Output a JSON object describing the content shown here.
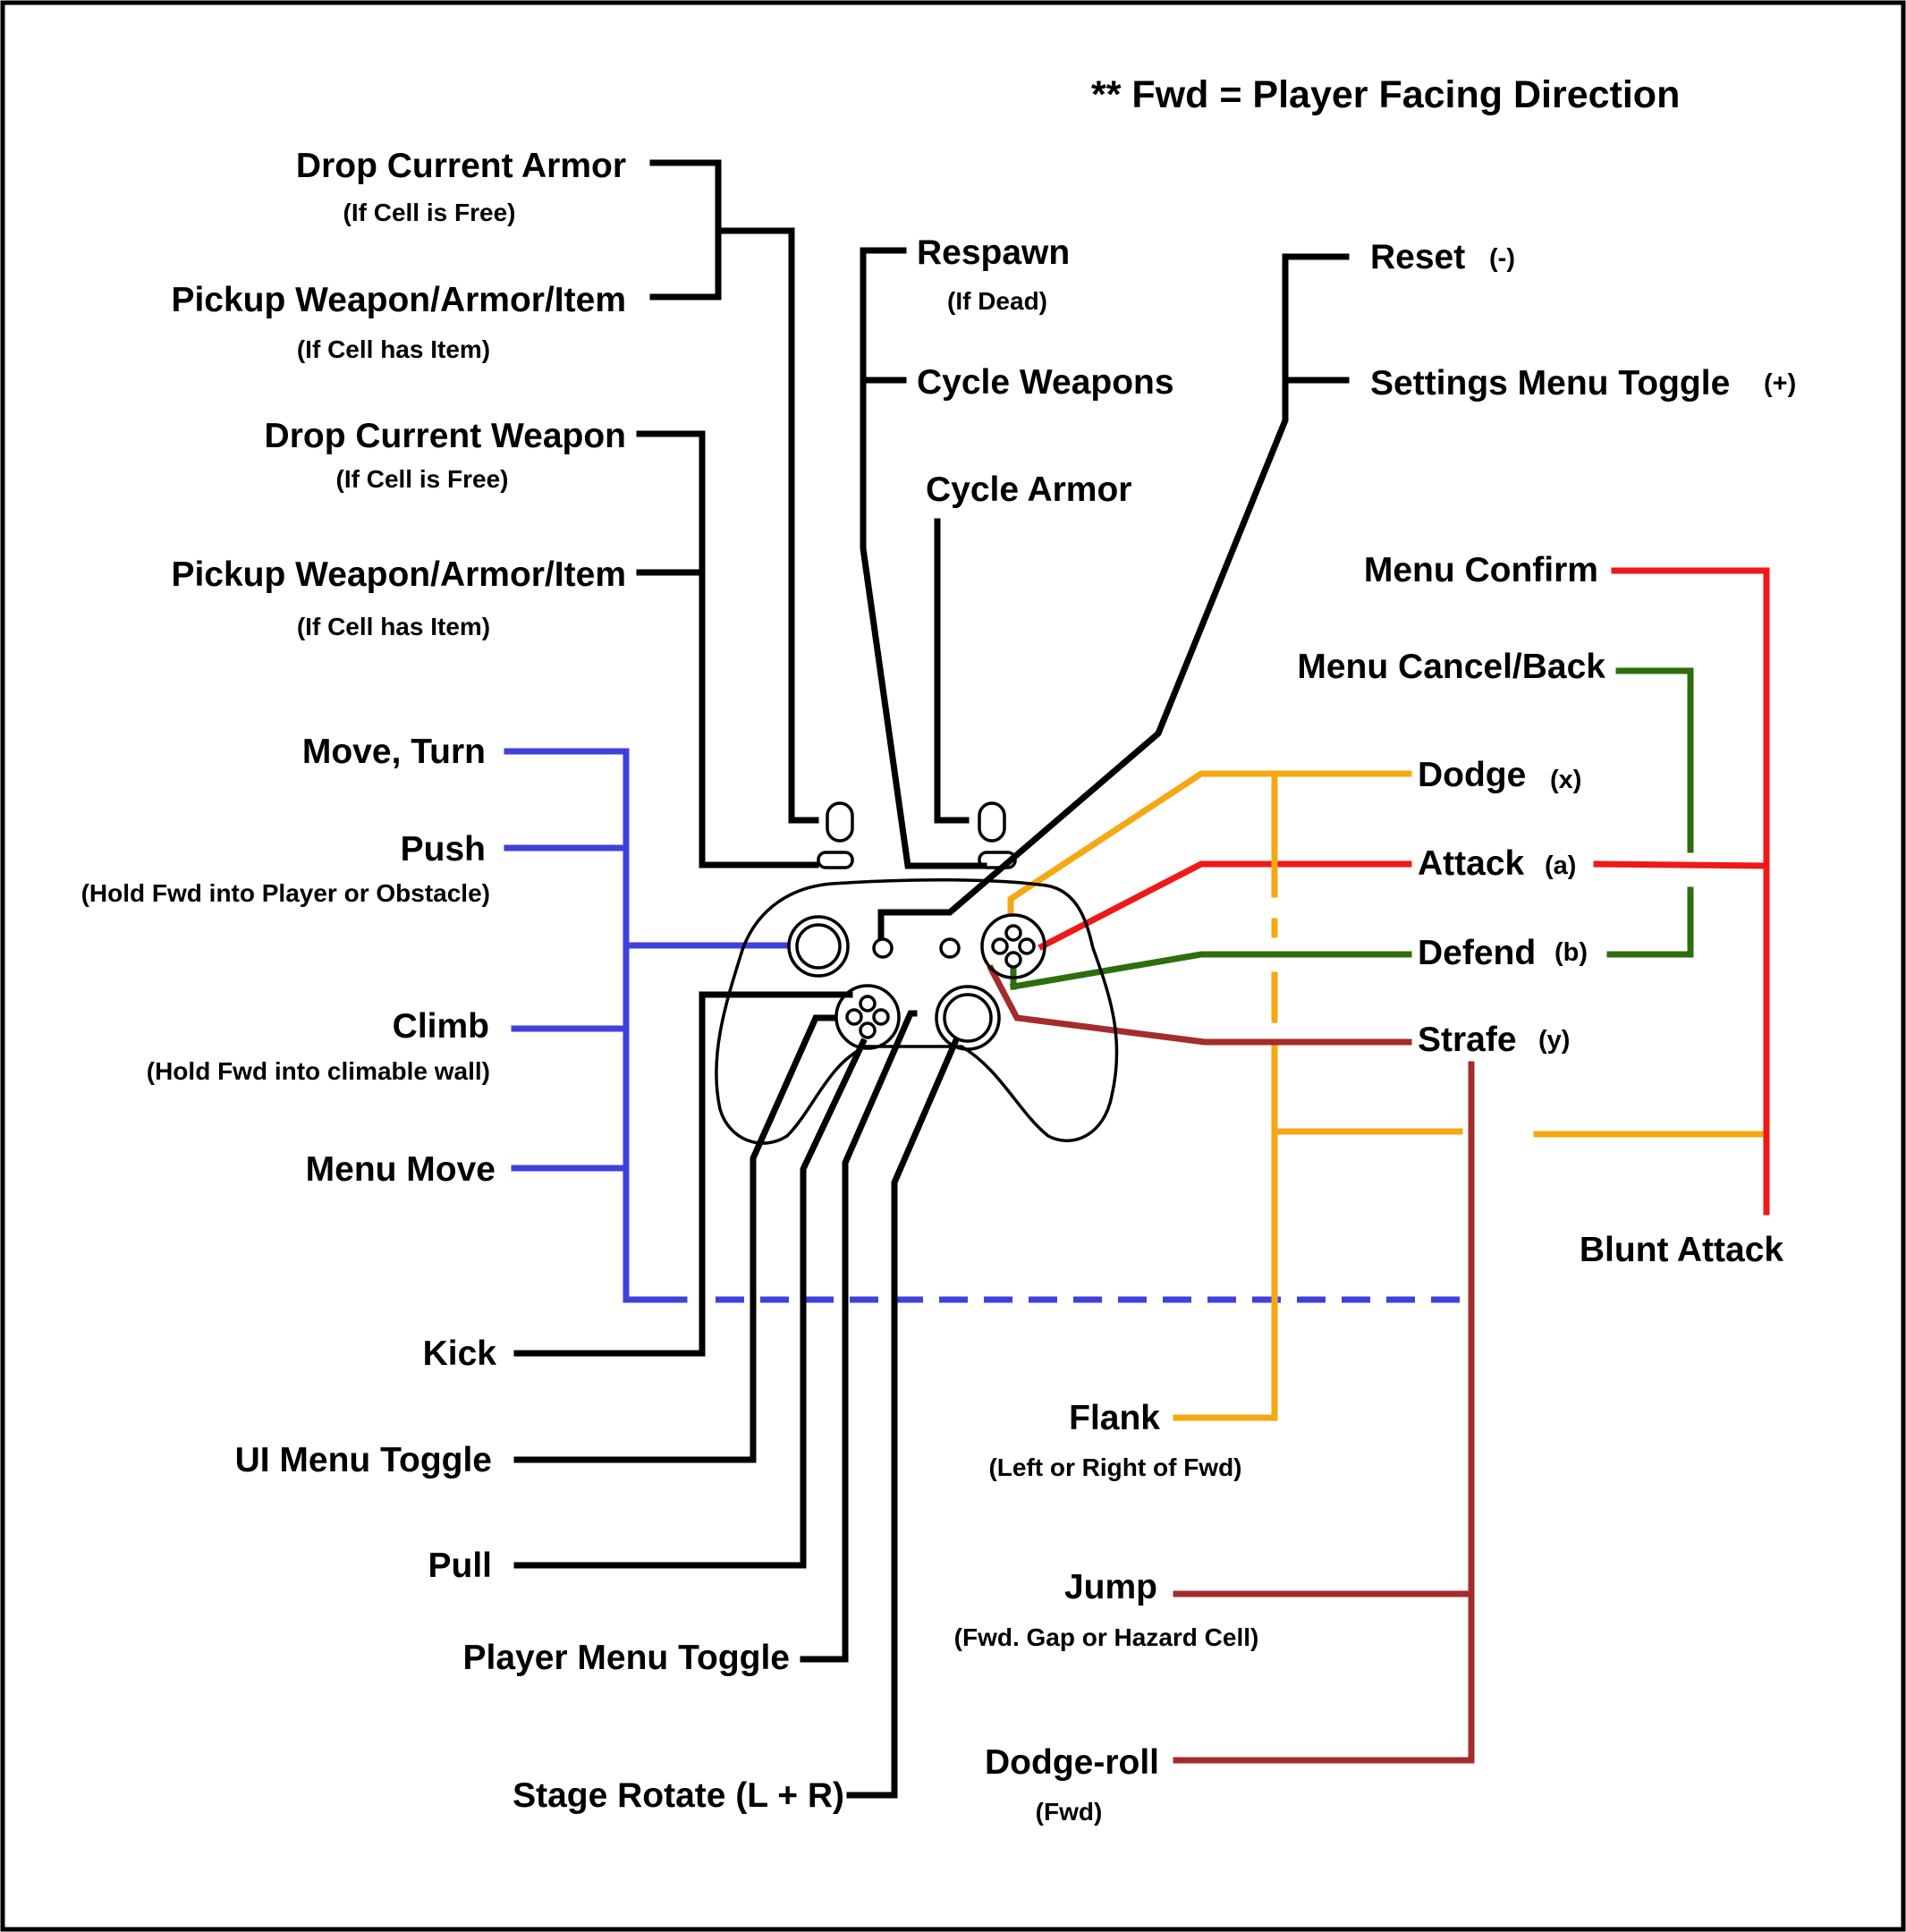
{
  "colors": {
    "blue": "#4040dd",
    "black": "#000000",
    "orange": "#f5a813",
    "red": "#f01818",
    "green": "#2e6e0e",
    "maroon": "#a52c2c"
  },
  "note": "** Fwd = Player  Facing Direction",
  "labels": {
    "drop_armor": "Drop Current Armor",
    "drop_armor_sub": "(If Cell is Free)",
    "pickup_1": "Pickup Weapon/Armor/Item",
    "pickup_1_sub": "(If Cell has Item)",
    "drop_weapon": "Drop Current Weapon",
    "drop_weapon_sub": "(If Cell is Free)",
    "pickup_2": "Pickup Weapon/Armor/Item",
    "pickup_2_sub": "(If Cell has Item)",
    "move_turn": "Move, Turn",
    "push": "Push",
    "push_sub": "(Hold Fwd into Player or Obstacle)",
    "climb": "Climb",
    "climb_sub": "(Hold Fwd into climable wall)",
    "menu_move": "Menu  Move",
    "kick": "Kick",
    "ui_menu_toggle": "UI Menu Toggle",
    "pull": "Pull",
    "player_menu_toggle": "Player Menu Toggle",
    "stage_rotate": "Stage Rotate (L + R)",
    "respawn": "Respawn",
    "respawn_sub": "(If Dead)",
    "cycle_weapons": "Cycle Weapons",
    "cycle_armor": "Cycle Armor",
    "reset": "Reset",
    "reset_key": "(-)",
    "settings_toggle": "Settings Menu Toggle",
    "settings_key": "(+)",
    "menu_confirm": "Menu Confirm",
    "menu_cancel": "Menu Cancel/Back",
    "dodge": "Dodge",
    "dodge_key": "(x)",
    "attack": "Attack",
    "attack_key": "(a)",
    "defend": "Defend",
    "defend_key": "(b)",
    "strafe": "Strafe",
    "strafe_key": "(y)",
    "blunt_attack": "Blunt Attack",
    "flank": "Flank",
    "flank_sub": "(Left or Right of Fwd)",
    "jump": "Jump",
    "jump_sub": "(Fwd. Gap or Hazard Cell)",
    "dodge_roll": "Dodge-roll",
    "dodge_roll_sub": "(Fwd)"
  }
}
